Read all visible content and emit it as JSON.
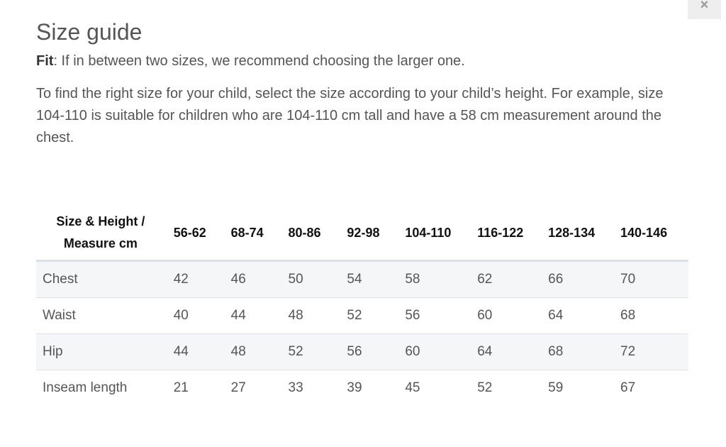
{
  "close_icon": "×",
  "title": "Size guide",
  "fit": {
    "label": "Fit",
    "text": ": If in between two sizes, we recommend choosing the larger one."
  },
  "description": "To find the right size for your child, select the size according to your child’s height. For example, size 104-110 is suitable for children who are 104-110 cm tall and have a 58 cm measurement around the chest.",
  "table": {
    "corner_header_line1": "Size & Height /",
    "corner_header_line2": "Measure cm",
    "sizes": [
      "56-62",
      "68-74",
      "80-86",
      "92-98",
      "104-110",
      "116-122",
      "128-134",
      "140-146"
    ],
    "rows": [
      {
        "label": "Chest",
        "values": [
          "42",
          "46",
          "50",
          "54",
          "58",
          "62",
          "66",
          "70"
        ]
      },
      {
        "label": "Waist",
        "values": [
          "40",
          "44",
          "48",
          "52",
          "56",
          "60",
          "64",
          "68"
        ]
      },
      {
        "label": "Hip",
        "values": [
          "44",
          "48",
          "52",
          "56",
          "60",
          "64",
          "68",
          "72"
        ]
      },
      {
        "label": "Inseam length",
        "values": [
          "21",
          "27",
          "33",
          "39",
          "45",
          "52",
          "59",
          "67"
        ]
      }
    ]
  }
}
